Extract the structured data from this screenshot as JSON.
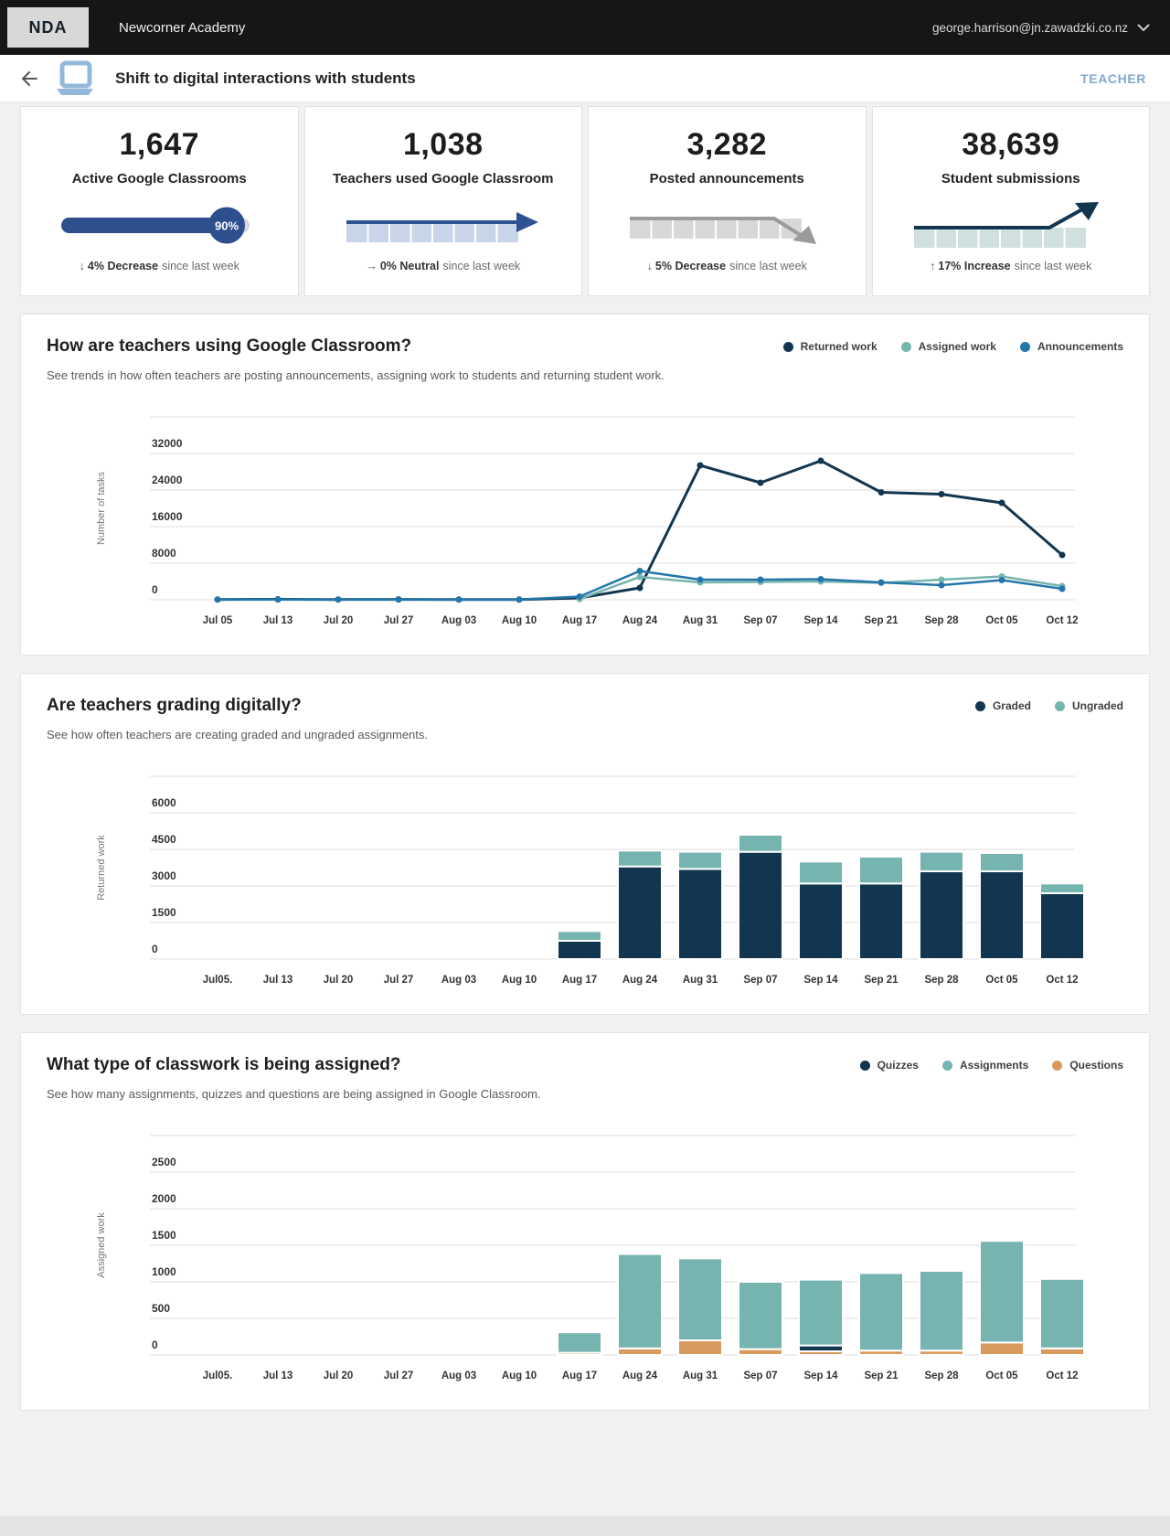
{
  "topbar": {
    "logo": "NDA",
    "org_name": "Newcorner Academy",
    "user_email": "george.harrison@jn.zawadzki.co.nz"
  },
  "header": {
    "title": "Shift to digital interactions with students",
    "role_label": "TEACHER"
  },
  "stats": [
    {
      "value": "1,647",
      "label": "Active Google Classrooms",
      "progress_pct": "90%",
      "delta": {
        "arrow": "↓",
        "emphasis": "4% Decrease",
        "rest": "since last week"
      }
    },
    {
      "value": "1,038",
      "label": "Teachers used Google Classroom",
      "delta": {
        "arrow": "→",
        "emphasis": "0% Neutral",
        "rest": "since last week"
      }
    },
    {
      "value": "3,282",
      "label": "Posted announcements",
      "delta": {
        "arrow": "↓",
        "emphasis": "5% Decrease",
        "rest": "since last week"
      }
    },
    {
      "value": "38,639",
      "label": "Student submissions",
      "delta": {
        "arrow": "↑",
        "emphasis": "17% Increase",
        "rest": "since last week"
      }
    }
  ],
  "colors": {
    "navy": "#133650",
    "teal": "#76b4af",
    "blue": "#2576ab",
    "orange": "#d89a5f",
    "progress_blue": "#2e4f8e",
    "teacher_accent": "#83a8d0",
    "gridline": "#dcdcdc"
  },
  "chart_data": [
    {
      "type": "line",
      "title": "How are teachers using Google Classroom?",
      "subtitle": "See trends in how often teachers are posting announcements, assigning work to students and returning student work.",
      "ylabel": "Number of tasks",
      "ylim": [
        0,
        40000
      ],
      "yticks": [
        0,
        8000,
        16000,
        24000,
        32000
      ],
      "grid": true,
      "legend_position": "top-right",
      "categories": [
        "Jul 05",
        "Jul 13",
        "Jul 20",
        "Jul 27",
        "Aug 03",
        "Aug 10",
        "Aug 17",
        "Aug 24",
        "Aug 31",
        "Sep 07",
        "Sep 14",
        "Sep 21",
        "Sep 28",
        "Oct 05",
        "Oct 12"
      ],
      "series": [
        {
          "name": "Returned work",
          "color": "#133650",
          "width": 3,
          "values": [
            60,
            90,
            60,
            80,
            60,
            50,
            400,
            2600,
            29400,
            25600,
            30400,
            23500,
            23100,
            21200,
            9800
          ]
        },
        {
          "name": "Assigned work",
          "color": "#76b4af",
          "width": 2.5,
          "values": [
            null,
            null,
            null,
            null,
            null,
            null,
            150,
            5000,
            3800,
            3900,
            4000,
            3700,
            4400,
            5100,
            3000
          ]
        },
        {
          "name": "Announcements",
          "color": "#2576ab",
          "width": 2.5,
          "values": [
            40,
            50,
            40,
            50,
            40,
            40,
            700,
            6300,
            4400,
            4400,
            4500,
            3800,
            3200,
            4300,
            2400
          ]
        }
      ]
    },
    {
      "type": "bar",
      "stacked": true,
      "title": "Are teachers grading digitally?",
      "subtitle": "See how often teachers are creating graded and ungraded assignments.",
      "ylabel": "Returned work",
      "ylim": [
        0,
        7500
      ],
      "yticks": [
        0,
        1500,
        3000,
        4500,
        6000
      ],
      "grid": true,
      "legend_position": "top-right",
      "categories": [
        "Jul05.",
        "Jul 13",
        "Jul 20",
        "Jul 27",
        "Aug 03",
        "Aug 10",
        "Aug 17",
        "Aug 24",
        "Aug 31",
        "Sep 07",
        "Sep 14",
        "Sep 21",
        "Sep 28",
        "Oct 05",
        "Oct 12"
      ],
      "series": [
        {
          "name": "Graded",
          "color": "#133650",
          "values": [
            0,
            0,
            0,
            0,
            0,
            0,
            750,
            3800,
            3700,
            4400,
            3100,
            3100,
            3600,
            3600,
            2700
          ]
        },
        {
          "name": "Ungraded",
          "color": "#76b4af",
          "values": [
            0,
            0,
            0,
            0,
            0,
            0,
            400,
            650,
            700,
            700,
            900,
            1100,
            800,
            750,
            400
          ]
        }
      ]
    },
    {
      "type": "bar",
      "stacked": true,
      "title": "What type of classwork is being assigned?",
      "subtitle": "See how many assignments, quizzes and questions are being assigned in Google Classroom.",
      "ylabel": "Assigned work",
      "ylim": [
        0,
        3000
      ],
      "yticks": [
        0,
        500,
        1000,
        1500,
        2000,
        2500
      ],
      "grid": true,
      "legend_position": "top-right",
      "legend": [
        {
          "label": "Quizzes",
          "color": "#133650"
        },
        {
          "label": "Assignments",
          "color": "#76b4af"
        },
        {
          "label": "Questions",
          "color": "#d89a5f"
        }
      ],
      "categories": [
        "Jul05.",
        "Jul 13",
        "Jul 20",
        "Jul 27",
        "Aug 03",
        "Aug 10",
        "Aug 17",
        "Aug 24",
        "Aug 31",
        "Sep 07",
        "Sep 14",
        "Sep 21",
        "Sep 28",
        "Oct 05",
        "Oct 12"
      ],
      "series": [
        {
          "name": "Questions",
          "color": "#d89a5f",
          "values": [
            0,
            0,
            0,
            0,
            0,
            0,
            30,
            90,
            200,
            80,
            50,
            60,
            60,
            170,
            90
          ]
        },
        {
          "name": "Quizzes",
          "color": "#133650",
          "values": [
            0,
            0,
            0,
            0,
            0,
            0,
            0,
            0,
            0,
            0,
            80,
            0,
            0,
            0,
            0
          ]
        },
        {
          "name": "Assignments",
          "color": "#76b4af",
          "values": [
            0,
            0,
            0,
            0,
            0,
            0,
            280,
            1290,
            1120,
            920,
            900,
            1060,
            1090,
            1390,
            950
          ]
        }
      ]
    }
  ]
}
